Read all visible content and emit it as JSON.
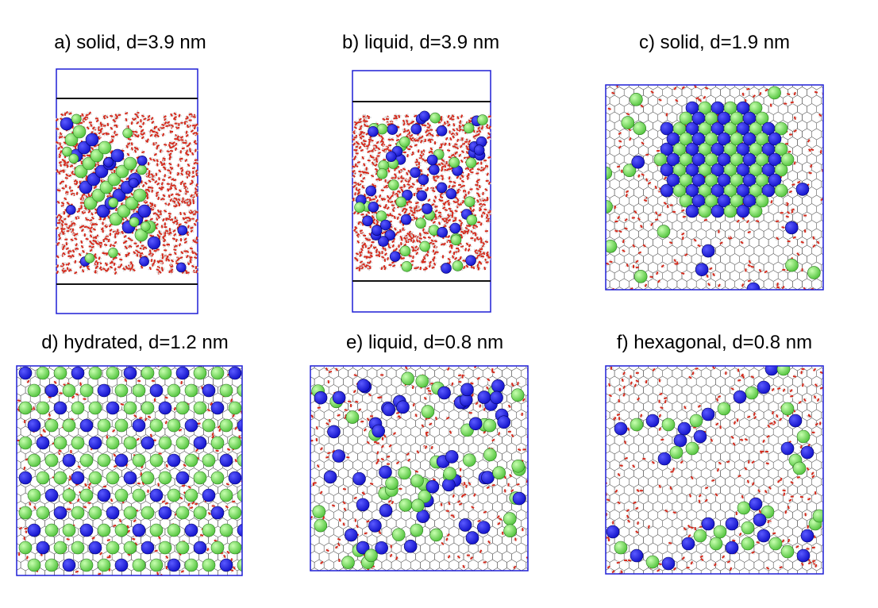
{
  "figure": {
    "panels": [
      {
        "id": "a",
        "title": "a) solid, d=3.9 nm",
        "kind": "side",
        "state": "solid"
      },
      {
        "id": "b",
        "title": "b) liquid, d=3.9 nm",
        "kind": "side",
        "state": "liquid"
      },
      {
        "id": "c",
        "title": "c) solid, d=1.9 nm",
        "kind": "top",
        "state": "solid-cluster"
      },
      {
        "id": "d",
        "title": "d) hydrated, d=1.2 nm",
        "kind": "top",
        "state": "hydrated"
      },
      {
        "id": "e",
        "title": "e) liquid, d=0.8 nm",
        "kind": "top",
        "state": "liquid"
      },
      {
        "id": "f",
        "title": "f) hexagonal, d=0.8 nm",
        "kind": "top",
        "state": "hexagonal"
      }
    ],
    "colors": {
      "box": "#1f1fd6",
      "cation": "#1010c8",
      "anion": "#7be05a",
      "oxygen": "#d42a1c",
      "hydrogen": "#d9d9d9",
      "lattice": "#555555",
      "wall": "#111111"
    }
  }
}
